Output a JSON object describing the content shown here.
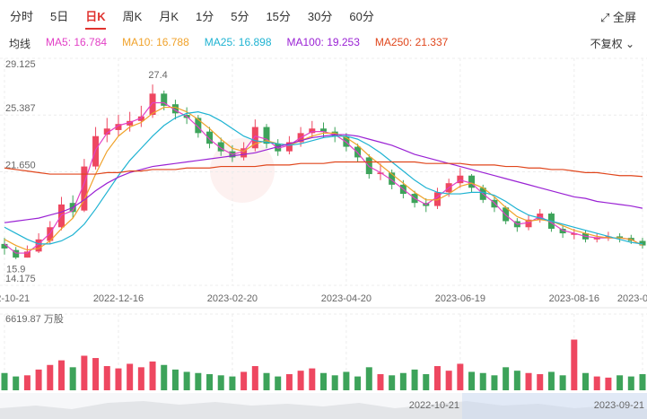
{
  "header": {
    "tabs": [
      {
        "label": "分时",
        "active": false
      },
      {
        "label": "5日",
        "active": false
      },
      {
        "label": "日K",
        "active": true
      },
      {
        "label": "周K",
        "active": false
      },
      {
        "label": "月K",
        "active": false
      },
      {
        "label": "1分",
        "active": false
      },
      {
        "label": "5分",
        "active": false
      },
      {
        "label": "15分",
        "active": false
      },
      {
        "label": "30分",
        "active": false
      },
      {
        "label": "60分",
        "active": false
      }
    ],
    "fullscreen": "全屏",
    "ma_label": "均线",
    "adjust": "不复权"
  },
  "chart_data": {
    "type": "candlestick",
    "categories": [
      "2022-10-21",
      null,
      null,
      null,
      null,
      null,
      null,
      null,
      null,
      null,
      "2022-12-16",
      null,
      null,
      null,
      null,
      null,
      null,
      null,
      null,
      null,
      "2023-02-20",
      null,
      null,
      null,
      null,
      null,
      null,
      null,
      null,
      null,
      "2023-04-20",
      null,
      null,
      null,
      null,
      null,
      null,
      null,
      null,
      null,
      "2023-06-19",
      null,
      null,
      null,
      null,
      null,
      null,
      null,
      null,
      null,
      "2023-08-16",
      null,
      null,
      null,
      null,
      null,
      "2023-09-21"
    ],
    "ohlc": [
      [
        16.9,
        17.3,
        16.2,
        16.6
      ],
      [
        16.5,
        16.7,
        15.9,
        16.0
      ],
      [
        16.0,
        16.8,
        16.0,
        16.4
      ],
      [
        16.4,
        17.6,
        16.3,
        17.2
      ],
      [
        17.1,
        18.4,
        16.9,
        18.0
      ],
      [
        18.0,
        20.0,
        17.8,
        19.5
      ],
      [
        19.6,
        20.1,
        18.6,
        19.0
      ],
      [
        19.1,
        22.5,
        19.0,
        22.0
      ],
      [
        22.0,
        24.6,
        21.8,
        24.0
      ],
      [
        24.1,
        25.2,
        23.6,
        24.5
      ],
      [
        24.4,
        25.4,
        24.0,
        24.8
      ],
      [
        24.7,
        25.6,
        24.3,
        25.0
      ],
      [
        25.0,
        26.0,
        24.6,
        25.3
      ],
      [
        25.4,
        27.4,
        25.2,
        26.8
      ],
      [
        26.8,
        27.0,
        25.7,
        26.0
      ],
      [
        26.1,
        26.4,
        25.1,
        25.5
      ],
      [
        25.4,
        25.9,
        24.8,
        25.2
      ],
      [
        25.2,
        25.4,
        23.9,
        24.2
      ],
      [
        24.3,
        24.6,
        23.2,
        23.5
      ],
      [
        23.6,
        23.9,
        22.7,
        23.0
      ],
      [
        23.0,
        23.4,
        22.3,
        22.6
      ],
      [
        22.6,
        23.6,
        22.4,
        23.2
      ],
      [
        23.2,
        25.1,
        23.0,
        24.6
      ],
      [
        24.6,
        24.8,
        23.2,
        23.5
      ],
      [
        23.5,
        23.8,
        22.7,
        23.0
      ],
      [
        23.0,
        24.0,
        22.8,
        23.6
      ],
      [
        23.6,
        24.6,
        23.3,
        24.2
      ],
      [
        24.2,
        25.0,
        23.9,
        24.5
      ],
      [
        24.5,
        24.9,
        23.9,
        24.3
      ],
      [
        24.3,
        24.6,
        23.6,
        24.0
      ],
      [
        24.0,
        24.2,
        23.0,
        23.3
      ],
      [
        23.3,
        23.5,
        22.3,
        22.6
      ],
      [
        22.6,
        22.8,
        21.2,
        21.5
      ],
      [
        21.5,
        22.2,
        21.1,
        21.6
      ],
      [
        21.6,
        21.8,
        20.5,
        20.8
      ],
      [
        20.8,
        21.1,
        19.9,
        20.2
      ],
      [
        20.2,
        20.4,
        19.3,
        19.6
      ],
      [
        19.6,
        19.9,
        19.0,
        19.4
      ],
      [
        19.4,
        20.6,
        19.2,
        20.3
      ],
      [
        20.3,
        21.2,
        20.0,
        20.9
      ],
      [
        20.9,
        21.9,
        20.6,
        21.4
      ],
      [
        21.4,
        21.5,
        20.3,
        20.6
      ],
      [
        20.6,
        20.8,
        19.6,
        19.8
      ],
      [
        19.8,
        20.0,
        19.0,
        19.3
      ],
      [
        19.3,
        19.4,
        18.2,
        18.4
      ],
      [
        18.4,
        18.6,
        17.7,
        18.0
      ],
      [
        18.0,
        18.8,
        17.8,
        18.5
      ],
      [
        18.5,
        19.2,
        18.3,
        18.9
      ],
      [
        18.9,
        19.0,
        17.7,
        17.9
      ],
      [
        17.9,
        18.1,
        17.3,
        17.6
      ],
      [
        17.5,
        17.9,
        17.2,
        17.6
      ],
      [
        17.6,
        17.8,
        17.0,
        17.2
      ],
      [
        17.2,
        17.6,
        17.0,
        17.3
      ],
      [
        17.3,
        17.7,
        17.1,
        17.4
      ],
      [
        17.4,
        17.6,
        17.0,
        17.3
      ],
      [
        17.3,
        17.5,
        16.9,
        17.1
      ],
      [
        17.1,
        17.3,
        16.6,
        16.8
      ]
    ],
    "volume": [
      1500,
      1200,
      1300,
      1800,
      2200,
      2600,
      2000,
      3000,
      2800,
      2100,
      1900,
      2300,
      2000,
      2500,
      2200,
      1800,
      1600,
      1500,
      1400,
      1300,
      1200,
      1600,
      2100,
      1500,
      1200,
      1400,
      1700,
      1900,
      1500,
      1300,
      1600,
      1200,
      2000,
      1400,
      1300,
      1500,
      1800,
      1400,
      2100,
      1700,
      2300,
      1600,
      1500,
      1300,
      2000,
      1700,
      1500,
      1400,
      1600,
      1300,
      4400,
      1500,
      1200,
      1100,
      1300,
      1200,
      1400
    ],
    "series": [
      {
        "name": "MA5: 16.784",
        "color": "#e23fc6",
        "values": [
          16.9,
          16.3,
          16.3,
          16.9,
          17.6,
          18.8,
          19.1,
          20.9,
          23.1,
          24.2,
          24.7,
          24.9,
          25.2,
          26.2,
          26.2,
          25.7,
          25.3,
          24.6,
          23.8,
          23.2,
          22.8,
          23.0,
          24.0,
          23.8,
          23.2,
          23.4,
          23.9,
          24.3,
          24.3,
          24.1,
          23.6,
          22.9,
          22.0,
          21.6,
          21.1,
          20.5,
          19.9,
          19.5,
          20.0,
          20.6,
          21.1,
          20.9,
          20.2,
          19.6,
          18.8,
          18.2,
          18.3,
          18.7,
          18.3,
          17.8,
          17.6,
          17.4,
          17.3,
          17.3,
          17.3,
          17.2,
          16.8
        ]
      },
      {
        "name": "MA10: 16.788",
        "color": "#f0a22a",
        "values": [
          17.2,
          16.8,
          16.5,
          16.6,
          17.1,
          17.9,
          18.6,
          19.8,
          21.5,
          23.0,
          24.0,
          24.6,
          24.9,
          25.5,
          25.9,
          25.9,
          25.6,
          25.1,
          24.5,
          23.8,
          23.2,
          23.0,
          23.5,
          23.7,
          23.5,
          23.4,
          23.7,
          24.0,
          24.2,
          24.2,
          23.9,
          23.4,
          22.7,
          22.1,
          21.5,
          20.9,
          20.3,
          19.8,
          19.8,
          20.2,
          20.7,
          20.9,
          20.6,
          20.0,
          19.3,
          18.7,
          18.4,
          18.5,
          18.4,
          18.1,
          17.8,
          17.6,
          17.4,
          17.3,
          17.3,
          17.2,
          16.8
        ]
      },
      {
        "name": "MA25: 16.898",
        "color": "#1fb3d2",
        "values": [
          18.0,
          17.6,
          17.2,
          16.9,
          16.9,
          17.1,
          17.5,
          18.2,
          19.2,
          20.3,
          21.4,
          22.4,
          23.2,
          24.0,
          24.7,
          25.2,
          25.5,
          25.6,
          25.4,
          25.0,
          24.5,
          24.0,
          23.7,
          23.6,
          23.5,
          23.4,
          23.5,
          23.7,
          23.9,
          24.0,
          24.0,
          23.8,
          23.4,
          22.9,
          22.3,
          21.7,
          21.1,
          20.6,
          20.3,
          20.2,
          20.2,
          20.3,
          20.3,
          20.1,
          19.7,
          19.2,
          18.8,
          18.6,
          18.4,
          18.2,
          18.0,
          17.8,
          17.6,
          17.4,
          17.2,
          17.0,
          16.9
        ]
      },
      {
        "name": "MA100: 19.253",
        "color": "#9a22d4",
        "values": [
          18.3,
          18.4,
          18.5,
          18.6,
          18.8,
          19.0,
          19.3,
          19.8,
          20.4,
          20.9,
          21.3,
          21.6,
          21.8,
          22.0,
          22.1,
          22.2,
          22.3,
          22.4,
          22.5,
          22.6,
          22.7,
          22.8,
          22.9,
          23.1,
          23.3,
          23.5,
          23.7,
          23.9,
          24.0,
          24.1,
          24.1,
          24.0,
          23.8,
          23.6,
          23.4,
          23.1,
          22.8,
          22.6,
          22.4,
          22.2,
          22.0,
          21.8,
          21.6,
          21.4,
          21.2,
          21.0,
          20.8,
          20.6,
          20.4,
          20.2,
          20.0,
          19.9,
          19.7,
          19.6,
          19.5,
          19.4,
          19.25
        ]
      },
      {
        "name": "MA250: 21.337",
        "color": "#e0461c",
        "values": [
          21.9,
          21.8,
          21.7,
          21.6,
          21.5,
          21.5,
          21.5,
          21.5,
          21.5,
          21.6,
          21.6,
          21.7,
          21.7,
          21.8,
          21.8,
          21.8,
          21.9,
          21.9,
          21.9,
          22.0,
          22.0,
          22.0,
          22.0,
          22.1,
          22.1,
          22.1,
          22.2,
          22.2,
          22.2,
          22.3,
          22.3,
          22.3,
          22.3,
          22.3,
          22.3,
          22.3,
          22.3,
          22.2,
          22.2,
          22.2,
          22.2,
          22.1,
          22.1,
          22.1,
          22.0,
          22.0,
          21.9,
          21.9,
          21.8,
          21.8,
          21.7,
          21.6,
          21.6,
          21.5,
          21.4,
          21.4,
          21.34
        ]
      }
    ],
    "ylim": [
      14.175,
      29.125
    ],
    "yticks": [
      29.125,
      25.387,
      {
        "value": 21.65,
        "label": "21.650"
      },
      14.175
    ],
    "vlim": [
      0,
      6619.87
    ],
    "vticks": [
      {
        "value": 6619.87,
        "label": "6619.87 万股"
      }
    ],
    "up_color": "#ee4760",
    "down_color": "#3da35a",
    "grid": true
  },
  "navigator": {
    "start": "2022-10-21",
    "end": "2023-09-21"
  }
}
